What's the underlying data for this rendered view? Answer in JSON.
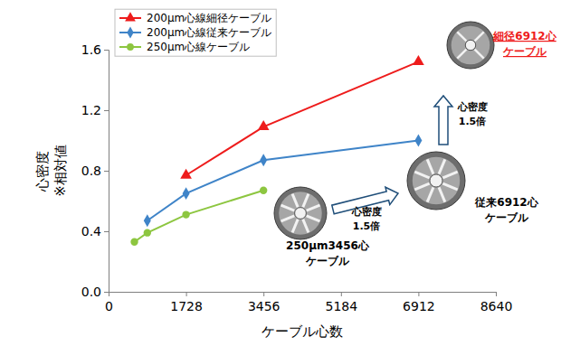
{
  "chart_data": {
    "type": "line",
    "xlabel": "ケーブル心数",
    "ylabel": [
      "心密度",
      "※相対値"
    ],
    "xlim": [
      0,
      8640
    ],
    "xticks": [
      0,
      1728,
      3456,
      5184,
      6912,
      8640
    ],
    "ylim": [
      0,
      1.6
    ],
    "yticks": [
      {
        "value": 0,
        "label": "0.0"
      },
      0.4,
      0.8,
      1.2,
      1.6
    ],
    "grid": false,
    "legend": "upper left",
    "series": [
      {
        "name": "200μm心線細径ケーブル",
        "color": "#ee1c1c",
        "marker": "triangle",
        "x": [
          1728,
          3456,
          6912
        ],
        "values": [
          0.77,
          1.09,
          1.52
        ]
      },
      {
        "name": "200μm心線従来ケーブル",
        "color": "#3f84c8",
        "marker": "diamond",
        "x": [
          864,
          1728,
          3456,
          6912
        ],
        "values": [
          0.47,
          0.65,
          0.87,
          1.0
        ]
      },
      {
        "name": "250μm心線ケーブル",
        "color": "#8dc640",
        "marker": "circle",
        "x": [
          576,
          864,
          1728,
          3456
        ],
        "values": [
          0.33,
          0.39,
          0.51,
          0.67
        ]
      }
    ],
    "annotations": [
      {
        "lines": [
          "250μm3456心",
          "ケーブル"
        ]
      },
      {
        "lines": [
          "心密度",
          "1.5倍"
        ]
      },
      {
        "lines": [
          "従来6912心",
          "ケーブル"
        ]
      },
      {
        "lines": [
          "心密度",
          "1.5倍"
        ]
      },
      {
        "lines": [
          "細径6912心",
          "ケーブル"
        ],
        "color": "#ee1c1c"
      }
    ]
  }
}
